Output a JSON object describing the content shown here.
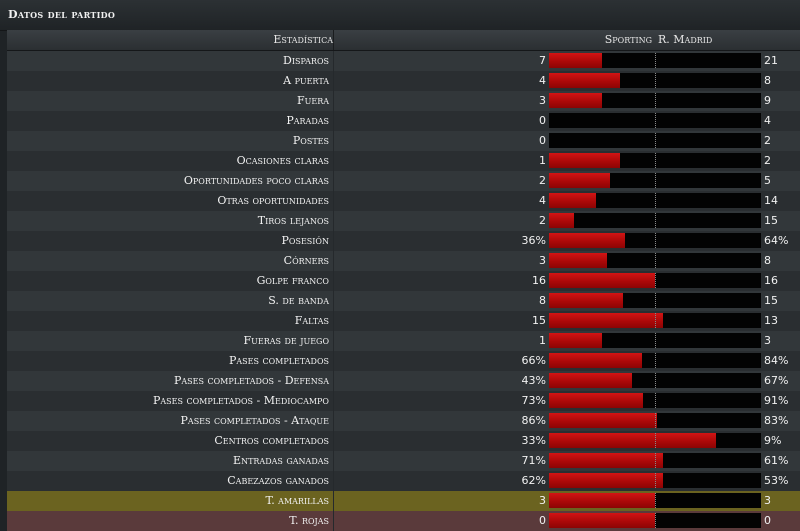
{
  "panel": {
    "title": "Datos del partido"
  },
  "header": {
    "label": "Estadística",
    "home": "Sporting",
    "away": "R. Madrid"
  },
  "rows": [
    {
      "label": "Disparos",
      "home": "7",
      "away": "21",
      "share": 0.25
    },
    {
      "label": "A puerta",
      "home": "4",
      "away": "8",
      "share": 0.333
    },
    {
      "label": "Fuera",
      "home": "3",
      "away": "9",
      "share": 0.25
    },
    {
      "label": "Paradas",
      "home": "0",
      "away": "4",
      "share": 0
    },
    {
      "label": "Postes",
      "home": "0",
      "away": "2",
      "share": 0
    },
    {
      "label": "Ocasiones claras",
      "home": "1",
      "away": "2",
      "share": 0.333
    },
    {
      "label": "Oportunidades poco claras",
      "home": "2",
      "away": "5",
      "share": 0.286
    },
    {
      "label": "Otras oportunidades",
      "home": "4",
      "away": "14",
      "share": 0.222
    },
    {
      "label": "Tiros lejanos",
      "home": "2",
      "away": "15",
      "share": 0.118
    },
    {
      "label": "Posesión",
      "home": "36%",
      "away": "64%",
      "share": 0.36
    },
    {
      "label": "Córners",
      "home": "3",
      "away": "8",
      "share": 0.273
    },
    {
      "label": "Golpe franco",
      "home": "16",
      "away": "16",
      "share": 0.5
    },
    {
      "label": "S. de banda",
      "home": "8",
      "away": "15",
      "share": 0.348
    },
    {
      "label": "Faltas",
      "home": "15",
      "away": "13",
      "share": 0.536
    },
    {
      "label": "Fueras de juego",
      "home": "1",
      "away": "3",
      "share": 0.25
    },
    {
      "label": "Pases completados",
      "home": "66%",
      "away": "84%",
      "share": 0.44
    },
    {
      "label": "Pases completados - Defensa",
      "home": "43%",
      "away": "67%",
      "share": 0.39
    },
    {
      "label": "Pases completados - Mediocampo",
      "home": "73%",
      "away": "91%",
      "share": 0.445
    },
    {
      "label": "Pases completados - Ataque",
      "home": "86%",
      "away": "83%",
      "share": 0.509
    },
    {
      "label": "Centros completados",
      "home": "33%",
      "away": "9%",
      "share": 0.786
    },
    {
      "label": "Entradas ganadas",
      "home": "71%",
      "away": "61%",
      "share": 0.538
    },
    {
      "label": "Cabezazos ganados",
      "home": "62%",
      "away": "53%",
      "share": 0.539
    },
    {
      "label": "T. amarillas",
      "home": "3",
      "away": "3",
      "share": 0.5,
      "highlight": "yellow"
    },
    {
      "label": "T. rojas",
      "home": "0",
      "away": "0",
      "share": 0.5,
      "highlight": "red"
    }
  ],
  "colors": {
    "bar_fill": "#c00c0c",
    "bar_bg": "#030303",
    "yellow_row": "#6b6320",
    "red_row": "#5a3a3b"
  }
}
